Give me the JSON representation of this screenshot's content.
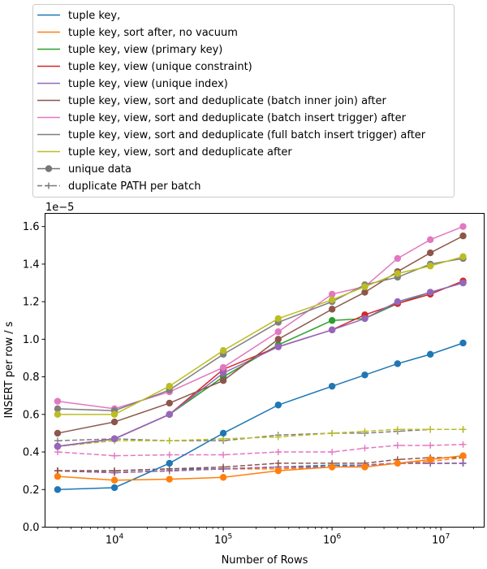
{
  "chart_data": {
    "type": "line",
    "xlabel": "Number of Rows",
    "ylabel": "INSERT per row / s",
    "y_offset_label": "1e−5",
    "xscale": "log",
    "xlim": [
      2300,
      25000000
    ],
    "ylim": [
      0,
      1.67
    ],
    "y_scale_factor": 1e-05,
    "grid": false,
    "legend_position": "top",
    "x_ticks": [
      {
        "value": 10000,
        "mantissa": "10",
        "exponent": "4"
      },
      {
        "value": 100000,
        "mantissa": "10",
        "exponent": "5"
      },
      {
        "value": 1000000,
        "mantissa": "10",
        "exponent": "6"
      },
      {
        "value": 10000000,
        "mantissa": "10",
        "exponent": "7"
      }
    ],
    "y_ticks": [
      {
        "value": 0.0,
        "label": "0.0"
      },
      {
        "value": 0.2,
        "label": "0.2"
      },
      {
        "value": 0.4,
        "label": "0.4"
      },
      {
        "value": 0.6,
        "label": "0.6"
      },
      {
        "value": 0.8,
        "label": "0.8"
      },
      {
        "value": 1.0,
        "label": "1.0"
      },
      {
        "value": 1.2,
        "label": "1.2"
      },
      {
        "value": 1.4,
        "label": "1.4"
      },
      {
        "value": 1.6,
        "label": "1.6"
      }
    ],
    "x": [
      3000,
      10000,
      32000,
      100000,
      320000,
      1000000,
      2000000,
      4000000,
      8000000,
      16000000
    ],
    "series": [
      {
        "name": "tuple key,",
        "color": "#1f77b4",
        "unique": [
          0.2,
          0.21,
          0.34,
          0.5,
          0.65,
          0.75,
          0.81,
          0.87,
          0.92,
          0.98
        ],
        "duplicate": [
          0.3,
          0.3,
          0.31,
          0.31,
          0.32,
          0.33,
          0.33,
          0.34,
          0.34,
          0.34
        ]
      },
      {
        "name": "tuple key, sort after, no vacuum",
        "color": "#ff7f0e",
        "unique": [
          0.27,
          0.25,
          0.255,
          0.265,
          0.3,
          0.32,
          0.32,
          0.34,
          0.36,
          0.38
        ],
        "duplicate": [
          0.3,
          0.29,
          0.3,
          0.31,
          0.31,
          0.32,
          0.33,
          0.34,
          0.35,
          0.37
        ]
      },
      {
        "name": "tuple key, view (primary key)",
        "color": "#2ca02c",
        "unique": [
          0.43,
          0.47,
          0.6,
          0.8,
          0.97,
          1.1,
          1.11,
          1.19,
          1.25,
          1.3
        ],
        "duplicate": [
          0.3,
          0.29,
          0.3,
          0.31,
          0.32,
          0.32,
          0.33,
          0.34,
          0.34,
          0.34
        ]
      },
      {
        "name": "tuple key, view (unique constraint)",
        "color": "#d62728",
        "unique": [
          0.43,
          0.47,
          0.6,
          0.84,
          0.96,
          1.05,
          1.13,
          1.19,
          1.24,
          1.31
        ],
        "duplicate": [
          0.3,
          0.29,
          0.3,
          0.31,
          0.32,
          0.32,
          0.33,
          0.34,
          0.34,
          0.34
        ]
      },
      {
        "name": "tuple key, view (unique index)",
        "color": "#9467bd",
        "unique": [
          0.43,
          0.47,
          0.6,
          0.82,
          0.96,
          1.05,
          1.11,
          1.2,
          1.25,
          1.3
        ],
        "duplicate": [
          0.3,
          0.29,
          0.3,
          0.31,
          0.32,
          0.32,
          0.33,
          0.34,
          0.34,
          0.34
        ]
      },
      {
        "name": "tuple key, view, sort and deduplicate (batch inner join) after",
        "color": "#8c564b",
        "unique": [
          0.5,
          0.56,
          0.66,
          0.78,
          1.0,
          1.16,
          1.25,
          1.36,
          1.46,
          1.55
        ],
        "duplicate": [
          0.3,
          0.3,
          0.31,
          0.32,
          0.34,
          0.34,
          0.34,
          0.36,
          0.37,
          0.37
        ]
      },
      {
        "name": "tuple key, view, sort and deduplicate (batch insert trigger) after",
        "color": "#e377c2",
        "unique": [
          0.67,
          0.63,
          0.72,
          0.85,
          1.04,
          1.24,
          1.28,
          1.43,
          1.53,
          1.6
        ],
        "duplicate": [
          0.4,
          0.38,
          0.385,
          0.385,
          0.4,
          0.4,
          0.42,
          0.435,
          0.435,
          0.44
        ]
      },
      {
        "name": "tuple key, view, sort and deduplicate (full batch insert trigger) after",
        "color": "#7f7f7f",
        "unique": [
          0.63,
          0.62,
          0.73,
          0.92,
          1.09,
          1.2,
          1.29,
          1.33,
          1.4,
          1.43
        ],
        "duplicate": [
          0.46,
          0.47,
          0.46,
          0.46,
          0.49,
          0.5,
          0.5,
          0.51,
          0.52,
          0.52
        ]
      },
      {
        "name": "tuple key, view, sort and deduplicate after",
        "color": "#bcbd22",
        "unique": [
          0.6,
          0.6,
          0.75,
          0.94,
          1.11,
          1.21,
          1.28,
          1.35,
          1.39,
          1.44
        ],
        "duplicate": [
          0.43,
          0.46,
          0.46,
          0.47,
          0.48,
          0.5,
          0.51,
          0.52,
          0.52,
          0.52
        ]
      }
    ],
    "style_legend": [
      {
        "name": "unique data",
        "color": "#777777",
        "marker": "circle",
        "dash": "solid"
      },
      {
        "name": "duplicate PATH per batch",
        "color": "#777777",
        "marker": "plus",
        "dash": "dashed"
      }
    ]
  }
}
